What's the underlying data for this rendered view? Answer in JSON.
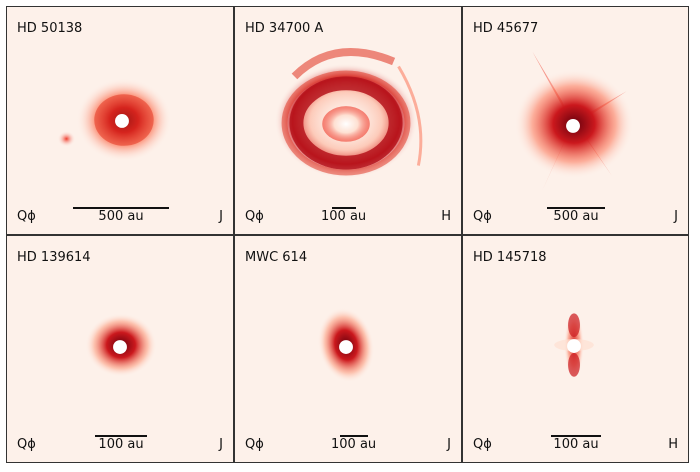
{
  "panels": [
    {
      "star": "HD 50138",
      "q_label": "Qϕ",
      "scale": "500 au",
      "band": "J"
    },
    {
      "star": "HD 34700 A",
      "q_label": "Qϕ",
      "scale": "100 au",
      "band": "H"
    },
    {
      "star": "HD 45677",
      "q_label": "Qϕ",
      "scale": "500 au",
      "band": "J"
    },
    {
      "star": "HD 139614",
      "q_label": "Qϕ",
      "scale": "100 au",
      "band": "J"
    },
    {
      "star": "MWC 614",
      "q_label": "Qϕ",
      "scale": "100 au",
      "band": "J"
    },
    {
      "star": "HD 145718",
      "q_label": "Qϕ",
      "scale": "100 au",
      "band": "H"
    }
  ],
  "colors": {
    "background": "#fdf1ea",
    "emission_dark": "#8b0000",
    "emission_mid": "#d7301f",
    "emission_light": "#fc9272",
    "coronagraph": "#ffffff"
  }
}
